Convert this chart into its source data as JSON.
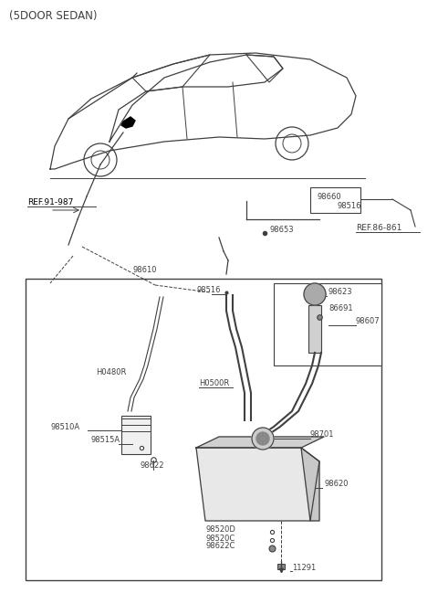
{
  "title": "(5DOOR SEDAN)",
  "bg_color": "#ffffff",
  "line_color": "#404040",
  "text_color": "#404040",
  "box_color": "#404040",
  "fig_width": 4.8,
  "fig_height": 6.49,
  "dpi": 100,
  "labels": {
    "ref91": "REF.91-987",
    "ref86": "REF.86-861",
    "p98660": "98660",
    "p98516_top": "98516",
    "p98653": "98653",
    "p98610": "98610",
    "p98516_box": "98516",
    "p98623": "98623",
    "p86691": "86691",
    "p98607": "98607",
    "pH0480R": "H0480R",
    "pH0500R": "H0500R",
    "p98510A": "98510A",
    "p98515A": "98515A",
    "p98622": "98622",
    "p98701": "98701",
    "p98620": "98620",
    "p98520D": "98520D",
    "p98520C": "98520C",
    "p98622C": "98622C",
    "p11291": "11291"
  }
}
